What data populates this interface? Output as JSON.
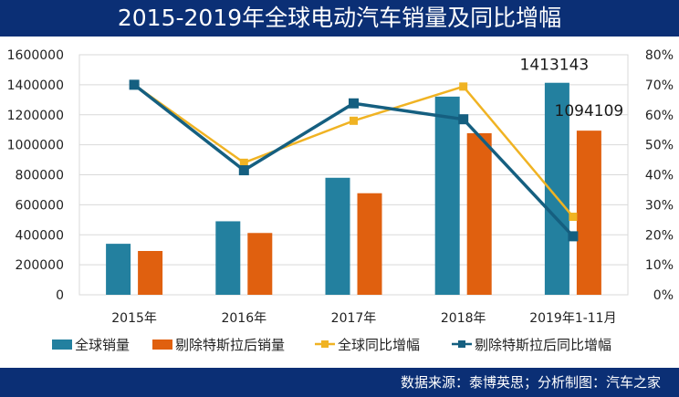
{
  "header": {
    "title": "2015-2019年全球电动汽车销量及同比增幅"
  },
  "footer": {
    "source": "数据来源：泰博英思；分析制图：汽车之家"
  },
  "chart_data": {
    "type": "bar+line",
    "title": "2015-2019年全球电动汽车销量及同比增幅",
    "categories": [
      "2015年",
      "2016年",
      "2017年",
      "2018年",
      "2019年1-11月"
    ],
    "y_left": {
      "ylim": [
        0,
        1600000
      ],
      "ticks": [
        "0",
        "200000",
        "400000",
        "600000",
        "800000",
        "1000000",
        "1200000",
        "1400000",
        "1600000"
      ],
      "tick_values": [
        0,
        200000,
        400000,
        600000,
        800000,
        1000000,
        1200000,
        1400000,
        1600000
      ]
    },
    "y_right": {
      "ylim": [
        0,
        80
      ],
      "ticks": [
        "0%",
        "10%",
        "20%",
        "30%",
        "40%",
        "50%",
        "60%",
        "70%",
        "80%"
      ],
      "tick_values": [
        0,
        10,
        20,
        30,
        40,
        50,
        60,
        70,
        80
      ]
    },
    "grid": true,
    "legend_position": "bottom",
    "series": [
      {
        "name": "全球销量",
        "kind": "bar",
        "axis": "left",
        "color": "#23809f",
        "values": [
          340000,
          490000,
          780000,
          1321000,
          1413143
        ]
      },
      {
        "name": "剔除特斯拉后销量",
        "kind": "bar",
        "axis": "left",
        "color": "#e0600f",
        "values": [
          292000,
          412000,
          677000,
          1077000,
          1094109
        ]
      },
      {
        "name": "全球同比增幅",
        "kind": "line",
        "axis": "right",
        "color": "#f0b323",
        "values": [
          70,
          44,
          58,
          69.4,
          26
        ]
      },
      {
        "name": "剔除特斯拉后同比增幅",
        "kind": "line",
        "axis": "right",
        "color": "#155f80",
        "values": [
          70,
          41.5,
          63.8,
          58.5,
          19.5
        ]
      }
    ],
    "data_labels": [
      {
        "series": 0,
        "index": 4,
        "text": "1413143"
      },
      {
        "series": 1,
        "index": 4,
        "text": "1094109"
      }
    ]
  }
}
